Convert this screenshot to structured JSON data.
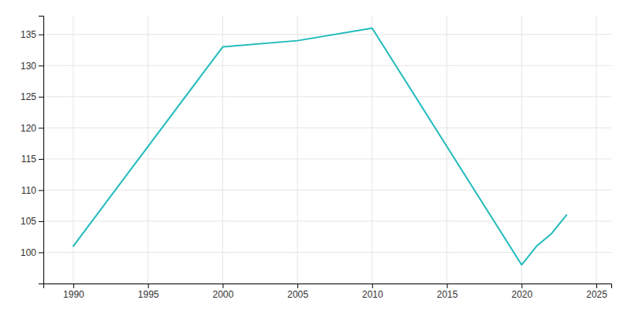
{
  "chart_data": {
    "type": "line",
    "x": [
      1990,
      2000,
      2005,
      2010,
      2020,
      2021,
      2022,
      2023
    ],
    "values": [
      101,
      133,
      134,
      136,
      98,
      101,
      103,
      106
    ],
    "color": "#22BBBB",
    "xlim": [
      1988,
      2026
    ],
    "ylim": [
      95,
      138
    ],
    "xticks": [
      1990,
      1995,
      2000,
      2005,
      2010,
      2015,
      2020,
      2025
    ],
    "yticks": [
      100,
      105,
      110,
      115,
      120,
      125,
      130,
      135
    ],
    "grid": true
  }
}
